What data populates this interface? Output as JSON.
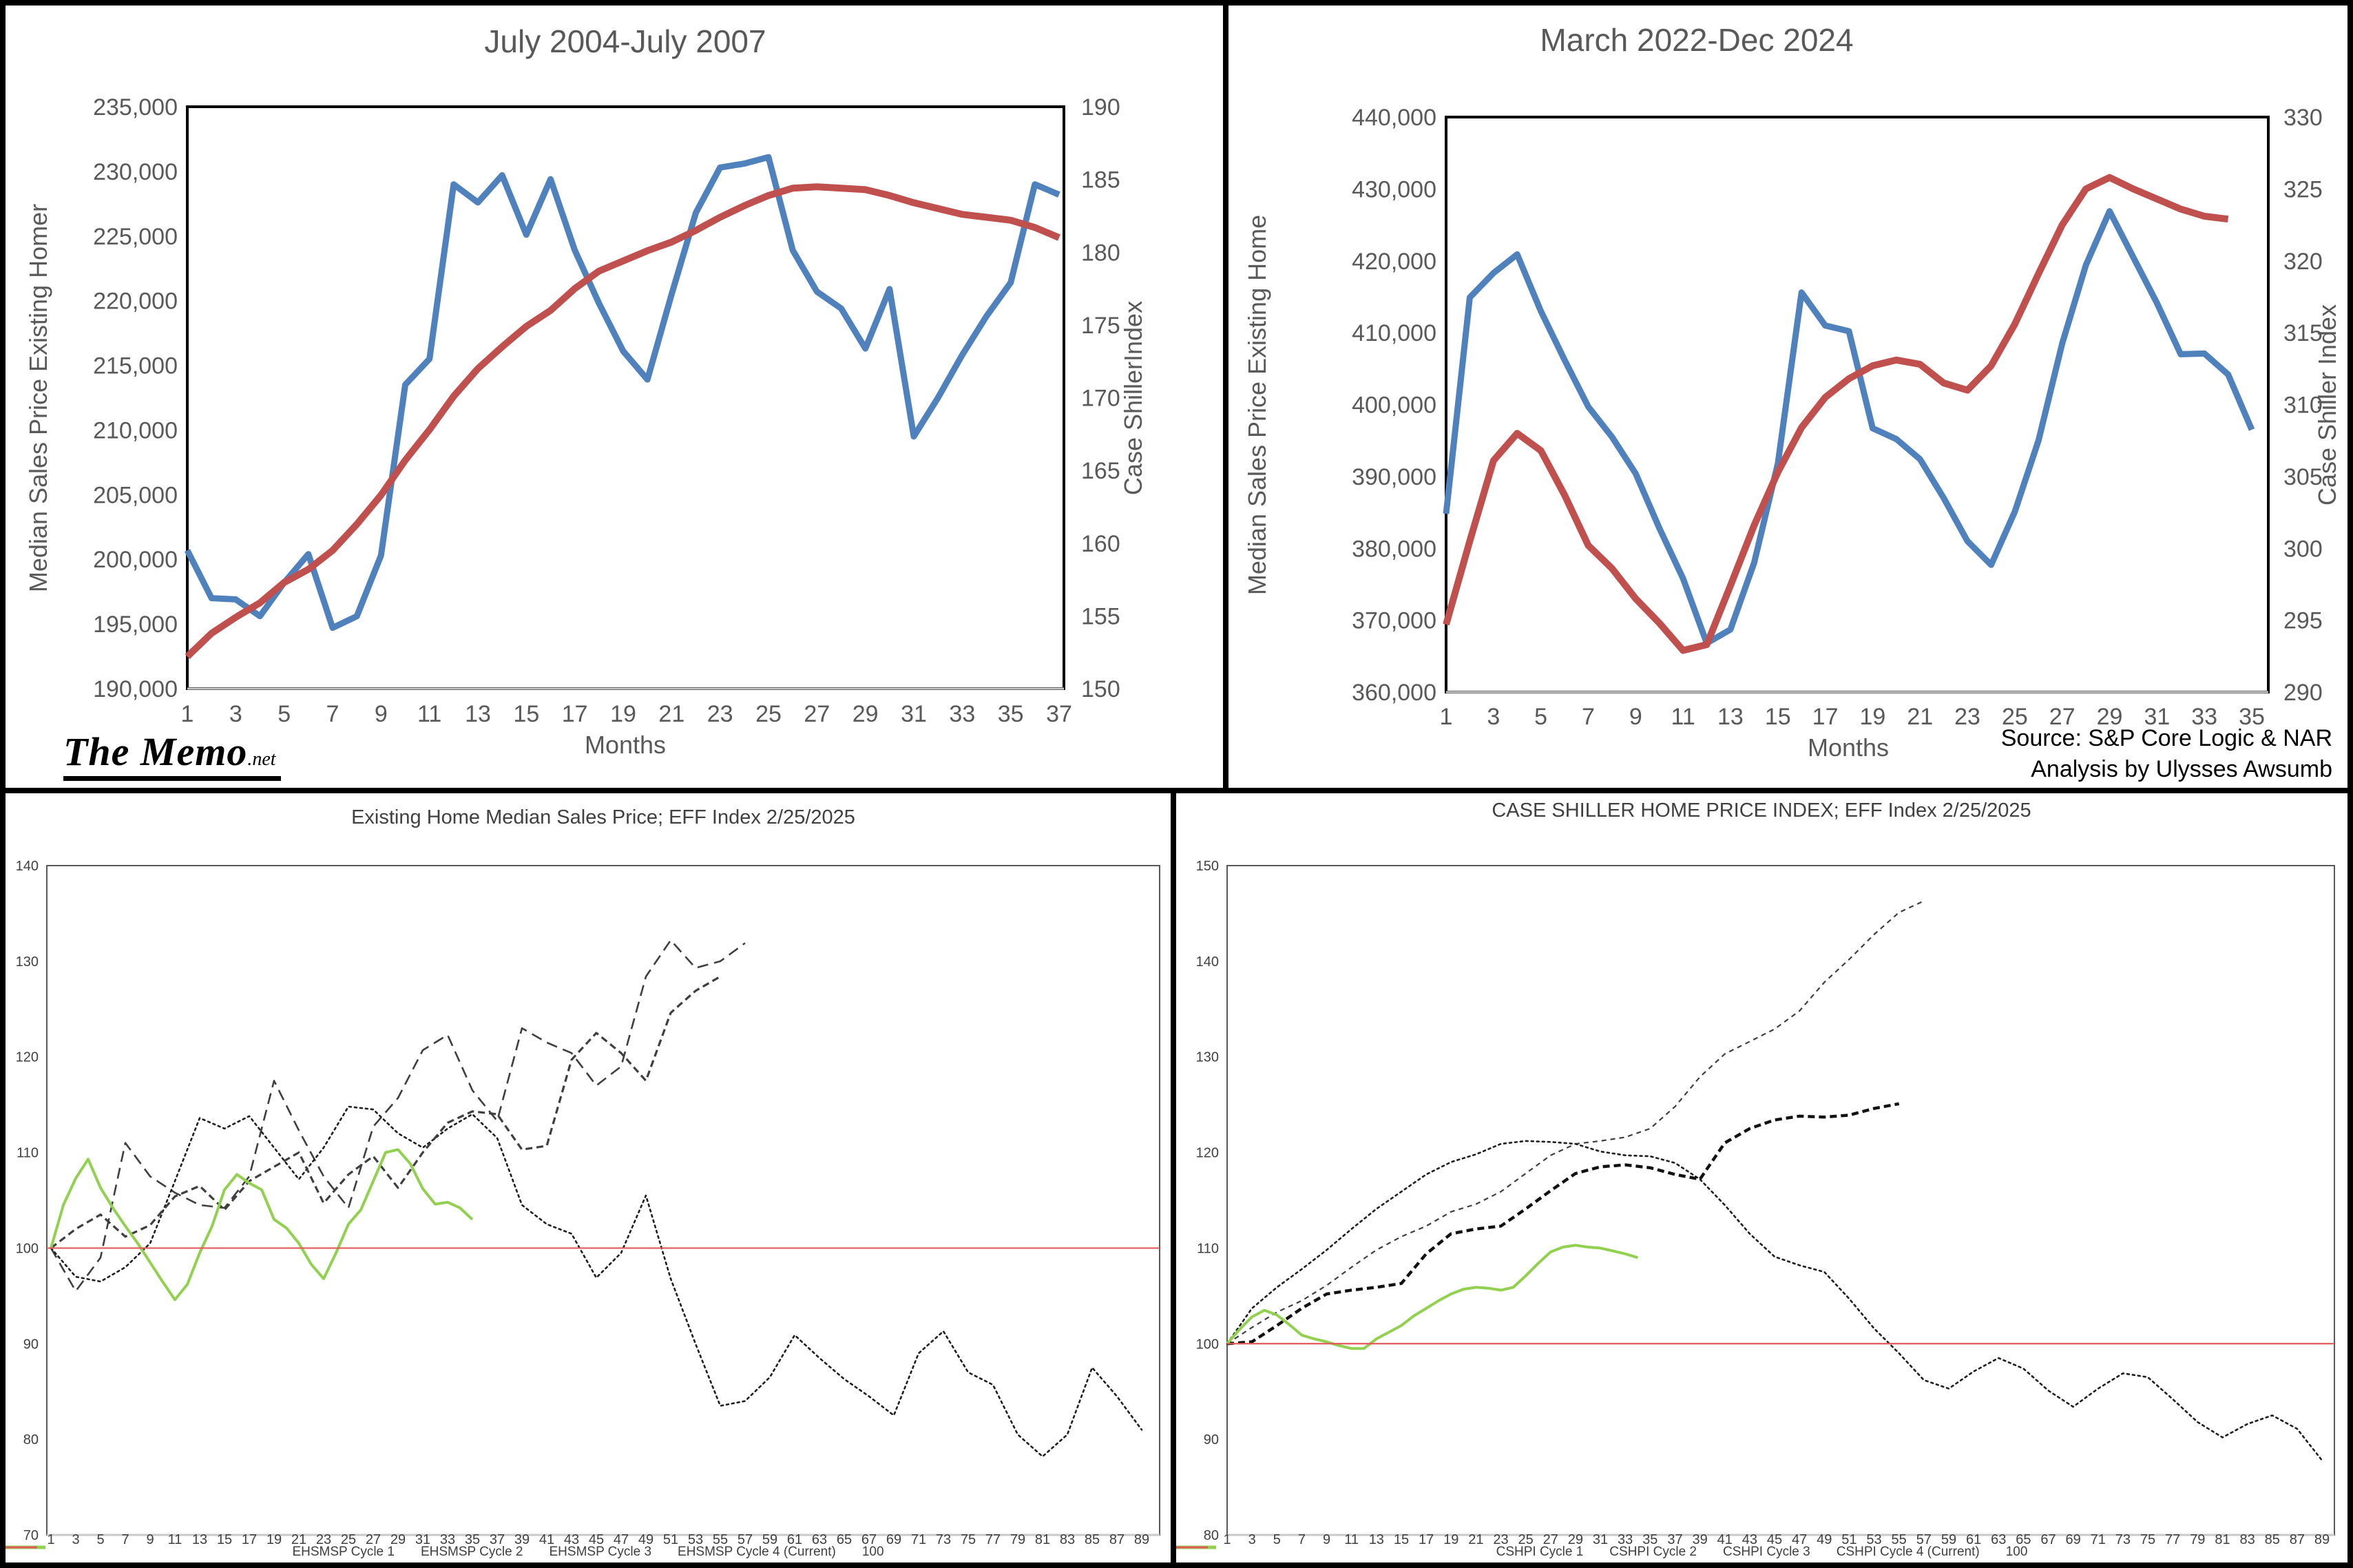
{
  "page": {
    "logo": {
      "text": "The Memo",
      "suffix": ".net"
    },
    "source_line1": "Source: S&P Core Logic & NAR",
    "source_line2": "Analysis by Ulysses Awsumb"
  },
  "colors": {
    "price_blue": "#4F81BD",
    "shiller_red": "#C0504D",
    "cycle_green": "#92D050",
    "baseline_red": "#E05A5A",
    "dash_gray": "#3f3f3f",
    "title_gray": "#595959"
  },
  "chart_data": [
    {
      "id": "tl",
      "type": "line",
      "title": "July 2004-July 2007",
      "xlabel": "Months",
      "x_ticks": [
        "1",
        "3",
        "5",
        "7",
        "9",
        "11",
        "13",
        "15",
        "17",
        "19",
        "21",
        "23",
        "25",
        "27",
        "29",
        "31",
        "33",
        "35",
        "37"
      ],
      "y_left": {
        "title": "Median Sales Price Existing Homer",
        "min": 190000,
        "max": 235000,
        "ticks": [
          "235,000",
          "230,000",
          "225,000",
          "220,000",
          "215,000",
          "210,000",
          "205,000",
          "200,000",
          "195,000",
          "190,000"
        ]
      },
      "y_right": {
        "title": "Case ShillerIndex",
        "min": 150,
        "max": 190,
        "ticks": [
          "190",
          "185",
          "180",
          "175",
          "170",
          "165",
          "160",
          "155",
          "150"
        ]
      },
      "series": [
        {
          "name": "Median Sales Price",
          "axis": "left",
          "style": "solid",
          "color": "#4F81BD",
          "width": 9,
          "x_start": 1,
          "x_step": 1,
          "values": [
            200700,
            197000,
            196900,
            195600,
            198200,
            200400,
            194700,
            195600,
            200300,
            213500,
            215500,
            229000,
            227600,
            229700,
            225100,
            229400,
            223900,
            219800,
            216100,
            213900,
            220500,
            226800,
            230300,
            230600,
            231100,
            223900,
            220700,
            219400,
            216300,
            220900,
            209500,
            212500,
            215800,
            218800,
            221400,
            229000,
            228200
          ]
        },
        {
          "name": "Case Shiller Index",
          "axis": "right",
          "style": "solid",
          "color": "#C0504D",
          "width": 10,
          "x_start": 1,
          "x_step": 1,
          "values": [
            152.2,
            153.8,
            154.9,
            155.9,
            157.3,
            158.2,
            159.5,
            161.3,
            163.3,
            165.7,
            167.8,
            170.1,
            172,
            173.5,
            174.9,
            176,
            177.5,
            178.7,
            179.4,
            180.1,
            180.7,
            181.5,
            182.4,
            183.2,
            183.9,
            184.4,
            184.5,
            184.4,
            184.3,
            183.9,
            183.4,
            183,
            182.6,
            182.4,
            182.2,
            181.7,
            181
          ]
        }
      ]
    },
    {
      "id": "tr",
      "type": "line",
      "title": "March 2022-Dec 2024",
      "xlabel": "Months",
      "x_ticks": [
        "1",
        "3",
        "5",
        "7",
        "9",
        "11",
        "13",
        "15",
        "17",
        "19",
        "21",
        "23",
        "25",
        "27",
        "29",
        "31",
        "33",
        "35"
      ],
      "y_left": {
        "title": "Median Sales Price Existing Home",
        "min": 360000,
        "max": 440000,
        "ticks": [
          "440,000",
          "430,000",
          "420,000",
          "410,000",
          "400,000",
          "390,000",
          "380,000",
          "370,000",
          "360,000"
        ]
      },
      "y_right": {
        "title": "Case Shiller Index",
        "min": 290,
        "max": 330,
        "ticks": [
          "330",
          "325",
          "320",
          "315",
          "310",
          "305",
          "300",
          "295",
          "290"
        ]
      },
      "series": [
        {
          "name": "Median Sales Price",
          "axis": "left",
          "style": "solid",
          "color": "#4F81BD",
          "width": 9,
          "x_start": 1,
          "x_step": 1,
          "values": [
            384800,
            414900,
            418300,
            420900,
            413000,
            406200,
            399700,
            395500,
            390400,
            382800,
            375800,
            366800,
            368700,
            378000,
            391800,
            415600,
            411000,
            410200,
            396700,
            395200,
            392400,
            387000,
            381000,
            377700,
            385100,
            395000,
            408500,
            419400,
            426900,
            420500,
            414100,
            407000,
            407100,
            404200,
            396500
          ]
        },
        {
          "name": "Case Shiller Index",
          "axis": "right",
          "style": "solid",
          "color": "#C0504D",
          "width": 10,
          "x_start": 1,
          "x_step": 1,
          "values": [
            294.7,
            300.5,
            306.1,
            308,
            306.8,
            303.7,
            300.2,
            298.6,
            296.5,
            294.8,
            292.9,
            293.3,
            297.4,
            301.6,
            305.3,
            308.4,
            310.5,
            311.8,
            312.7,
            313.1,
            312.8,
            311.5,
            311,
            312.7,
            315.6,
            319.1,
            322.5,
            325,
            325.8,
            325,
            324.3,
            323.6,
            323.1,
            322.9
          ]
        }
      ]
    },
    {
      "id": "bl",
      "type": "line",
      "title": "Existing Home Median Sales Price; EFF Index 2/25/2025",
      "x_ticks": [
        "1",
        "3",
        "5",
        "7",
        "9",
        "11",
        "13",
        "15",
        "17",
        "19",
        "21",
        "23",
        "25",
        "27",
        "29",
        "31",
        "33",
        "35",
        "37",
        "39",
        "41",
        "43",
        "45",
        "47",
        "49",
        "51",
        "53",
        "55",
        "57",
        "59",
        "61",
        "63",
        "65",
        "67",
        "69",
        "71",
        "73",
        "75",
        "77",
        "79",
        "81",
        "83",
        "85",
        "87",
        "89"
      ],
      "y_left": {
        "title": "",
        "min": 70,
        "max": 140,
        "ticks": [
          "140",
          "130",
          "120",
          "110",
          "100",
          "90",
          "80",
          "70"
        ]
      },
      "baseline": 100,
      "series": [
        {
          "name": "EHSMSP Cycle 1",
          "axis": "left",
          "style": "dash-long",
          "color": "#3f3f3f",
          "width": 2.6,
          "x_start": 1,
          "x_step": 2,
          "values": [
            100,
            95.5,
            99,
            111,
            107.5,
            105.8,
            104.5,
            104.2,
            107.5,
            117.5,
            112.3,
            107.5,
            104.2,
            112.7,
            115.7,
            120.7,
            122.3,
            116.5,
            113.3,
            123,
            121.5,
            120.4,
            117,
            119,
            128.4,
            132.2,
            129.3,
            130,
            131.9
          ]
        },
        {
          "name": "EHSMSP Cycle 2",
          "axis": "left",
          "style": "dot",
          "color": "#1f1f1f",
          "width": 2.6,
          "x_start": 1,
          "x_step": 2,
          "values": [
            100,
            97,
            96.5,
            98,
            100.5,
            107,
            113.6,
            112.5,
            113.8,
            110.5,
            107.2,
            110.5,
            114.8,
            114.5,
            112,
            110.5,
            112.5,
            114,
            111.5,
            104.5,
            102.5,
            101.5,
            96.9,
            99.5,
            105.5,
            96.8,
            90,
            83.5,
            84,
            86.5,
            90.9,
            88.5,
            86.3,
            84.5,
            82.5,
            89,
            91.3,
            87,
            85.7,
            80.5,
            78.2,
            80.5,
            87.5,
            84.5,
            81
          ]
        },
        {
          "name": "EHSMSP Cycle 3",
          "axis": "left",
          "style": "dash-med",
          "color": "#3f3f3f",
          "width": 3.2,
          "x_start": 1,
          "x_step": 2,
          "values": [
            100,
            102,
            103.5,
            101.2,
            102.4,
            105.4,
            106.5,
            104,
            107,
            108.5,
            110,
            104.7,
            107.7,
            109.6,
            106.3,
            110,
            113.1,
            114.3,
            114,
            110.3,
            110.7,
            119.7,
            122.5,
            120.4,
            117.5,
            124.6,
            126.9,
            128.4
          ]
        },
        {
          "name": "EHSMSP Cycle 4 (Current)",
          "axis": "left",
          "style": "solid",
          "color": "#92D050",
          "width": 4,
          "x_start": 1,
          "x_step": 1,
          "values": [
            100,
            104.5,
            107.3,
            109.3,
            106.3,
            104.2,
            102.3,
            100.5,
            98.5,
            96.5,
            94.6,
            96.2,
            99.5,
            102.3,
            106.1,
            107.7,
            106.8,
            106.1,
            103,
            102.1,
            100.5,
            98.3,
            96.8,
            99.5,
            102.5,
            104,
            107,
            110,
            110.3,
            108.8,
            106.2,
            104.6,
            104.8,
            104.2,
            103
          ]
        },
        {
          "name": "100",
          "axis": "left",
          "style": "baseline",
          "color": "#E05A5A",
          "width": 2.2,
          "x_start": 1,
          "x_step": 1,
          "values": []
        }
      ]
    },
    {
      "id": "br",
      "type": "line",
      "title": "CASE SHILLER HOME PRICE INDEX; EFF Index 2/25/2025",
      "x_ticks": [
        "1",
        "3",
        "5",
        "7",
        "9",
        "11",
        "13",
        "15",
        "17",
        "19",
        "21",
        "23",
        "25",
        "27",
        "29",
        "31",
        "33",
        "35",
        "37",
        "39",
        "41",
        "43",
        "45",
        "47",
        "49",
        "51",
        "53",
        "55",
        "57",
        "59",
        "61",
        "63",
        "65",
        "67",
        "69",
        "71",
        "73",
        "75",
        "77",
        "79",
        "81",
        "83",
        "85",
        "87",
        "89"
      ],
      "y_left": {
        "title": "",
        "min": 80,
        "max": 150,
        "ticks": [
          "150",
          "140",
          "130",
          "120",
          "110",
          "100",
          "90",
          "80"
        ]
      },
      "baseline": 100,
      "series": [
        {
          "name": "CSHPI Cycle 1",
          "axis": "left",
          "style": "dash-fine",
          "color": "#3f3f3f",
          "width": 2.2,
          "x_start": 1,
          "x_step": 2,
          "values": [
            100,
            101.7,
            103.3,
            104.5,
            106.1,
            108,
            109.8,
            111.2,
            112.3,
            113.8,
            114.6,
            115.9,
            117.8,
            119.7,
            120.9,
            121.2,
            121.6,
            122.5,
            124.8,
            127.9,
            130.3,
            131.6,
            132.9,
            134.8,
            137.8,
            140.2,
            142.8,
            145.1,
            146.3
          ]
        },
        {
          "name": "CSHPI Cycle 2",
          "axis": "left",
          "style": "dot",
          "color": "#1f1f1f",
          "width": 2.6,
          "x_start": 1,
          "x_step": 2,
          "values": [
            100,
            103.7,
            105.9,
            107.8,
            109.8,
            112,
            114.1,
            115.9,
            117.7,
            119,
            119.8,
            120.9,
            121.2,
            121.1,
            120.9,
            120.1,
            119.7,
            119.6,
            118.9,
            117.2,
            114.5,
            111.5,
            109.1,
            108.2,
            107.5,
            104.7,
            101.6,
            99,
            96.2,
            95.3,
            97.1,
            98.5,
            97.4,
            95.1,
            93.4,
            95.3,
            96.9,
            96.5,
            94.2,
            91.8,
            90.2,
            91.6,
            92.5,
            91.1,
            87.8
          ]
        },
        {
          "name": "CSHPI Cycle 3",
          "axis": "left",
          "style": "dash-bold",
          "color": "#111",
          "width": 4.4,
          "x_start": 1,
          "x_step": 2,
          "values": [
            100,
            100.2,
            101.9,
            103.7,
            105.2,
            105.6,
            105.9,
            106.3,
            109.4,
            111.5,
            112,
            112.3,
            114.1,
            116,
            117.8,
            118.5,
            118.7,
            118.4,
            117.7,
            117.2,
            121,
            122.5,
            123.4,
            123.8,
            123.7,
            123.9,
            124.6,
            125.1
          ]
        },
        {
          "name": "CSHPI Cycle 4 (Current)",
          "axis": "left",
          "style": "solid",
          "color": "#92D050",
          "width": 4,
          "x_start": 1,
          "x_step": 1,
          "values": [
            100,
            101.5,
            102.8,
            103.5,
            103,
            102,
            100.9,
            100.5,
            100.2,
            99.8,
            99.5,
            99.5,
            100.5,
            101.2,
            101.9,
            102.9,
            103.7,
            104.5,
            105.2,
            105.7,
            105.9,
            105.8,
            105.6,
            105.9,
            107.1,
            108.4,
            109.6,
            110.1,
            110.3,
            110.1,
            110,
            109.7,
            109.4,
            109
          ]
        },
        {
          "name": "100",
          "axis": "left",
          "style": "baseline",
          "color": "#E05A5A",
          "width": 2.2,
          "x_start": 1,
          "x_step": 1,
          "values": []
        }
      ]
    }
  ]
}
